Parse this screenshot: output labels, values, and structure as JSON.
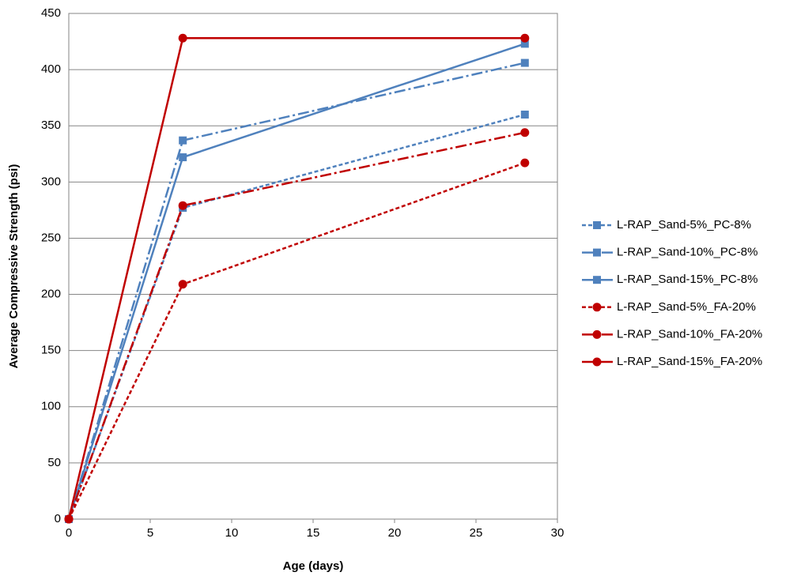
{
  "chart_data": {
    "type": "line",
    "x_label": "Age (days)",
    "y_label": "Average Compressive Strength (psi)",
    "x": [
      0,
      7,
      28
    ],
    "xlim": [
      0,
      30
    ],
    "xticks": [
      0,
      5,
      10,
      15,
      20,
      25,
      30
    ],
    "ylim": [
      0,
      450
    ],
    "yticks": [
      0,
      50,
      100,
      150,
      200,
      250,
      300,
      350,
      400,
      450
    ],
    "grid": true,
    "legend": "right",
    "series": [
      {
        "name": "L-RAP_Sand-5%_PC-8%",
        "color": "#4f81bd",
        "dash": "dashed",
        "marker": "square",
        "values": [
          0,
          277,
          360
        ]
      },
      {
        "name": "L-RAP_Sand-10%_PC-8%",
        "color": "#4f81bd",
        "dash": "dashdot",
        "marker": "square",
        "values": [
          0,
          337,
          406
        ]
      },
      {
        "name": "L-RAP_Sand-15%_PC-8%",
        "color": "#4f81bd",
        "dash": "solid",
        "marker": "square",
        "values": [
          0,
          322,
          423
        ]
      },
      {
        "name": "L-RAP_Sand-5%_FA-20%",
        "color": "#c00000",
        "dash": "dashed",
        "marker": "circle",
        "values": [
          0,
          209,
          317
        ]
      },
      {
        "name": "L-RAP_Sand-10%_FA-20%",
        "color": "#c00000",
        "dash": "dashdot",
        "marker": "circle",
        "values": [
          0,
          279,
          344
        ]
      },
      {
        "name": "L-RAP_Sand-15%_FA-20%",
        "color": "#c00000",
        "dash": "solid",
        "marker": "circle",
        "values": [
          0,
          428,
          428
        ]
      }
    ]
  }
}
